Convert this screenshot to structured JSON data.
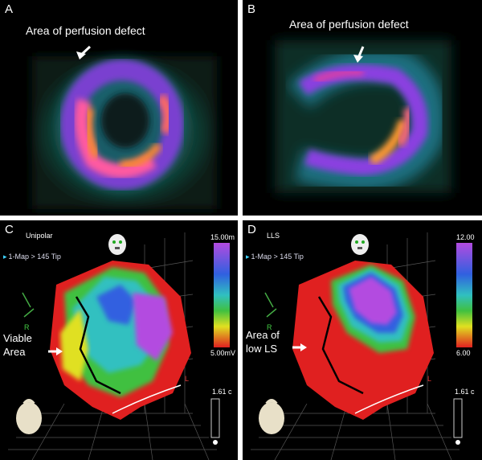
{
  "panels": {
    "A": {
      "letter": "A",
      "annotation": "Area of perfusion defect"
    },
    "B": {
      "letter": "B",
      "annotation": "Area of perfusion defect"
    },
    "C": {
      "letter": "C",
      "map_mode": "Unipolar",
      "map_name": "1-Map > 145 Tip",
      "scale_max": "15.00m",
      "scale_min": "5.00mV",
      "label_line1": "Viable",
      "label_line2": "Area",
      "scale_ruler": "1.61 c",
      "axis_r": "R",
      "axis_l": "L"
    },
    "D": {
      "letter": "D",
      "map_mode": "LLS",
      "map_name": "1-Map > 145 Tip",
      "scale_max": "12.00",
      "scale_min": "6.00",
      "label_line1": "Area of",
      "label_line2": "low LS",
      "scale_ruler": "1.61 c",
      "axis_r": "R",
      "axis_l": "L"
    }
  },
  "colors": {
    "background": "#000000",
    "divider": "#ffffff",
    "ramp_high": "#b34be0",
    "ramp_low": "#e02020"
  }
}
